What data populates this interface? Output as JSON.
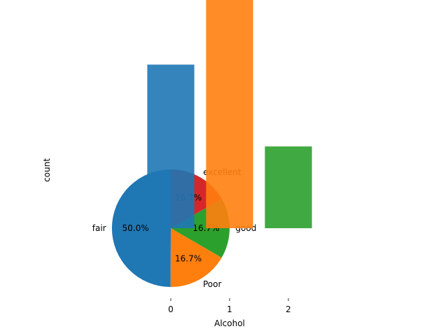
{
  "chart_data": [
    {
      "type": "pie",
      "slices": [
        {
          "label": "fair",
          "value": 50.0,
          "pct_label": "50.0%",
          "color": "#1f77b4"
        },
        {
          "label": "Poor",
          "value": 16.7,
          "pct_label": "16.7%",
          "color": "#ff7f0e"
        },
        {
          "label": "good",
          "value": 16.7,
          "pct_label": "16.7%",
          "color": "#2ca02c"
        },
        {
          "label": "excellent",
          "value": 16.7,
          "pct_label": "16.7%",
          "color": "#d62728"
        }
      ]
    },
    {
      "type": "bar",
      "categories": [
        "0",
        "1",
        "2"
      ],
      "values": [
        4,
        6,
        2
      ],
      "colors": [
        "#1f77b4",
        "#ff7f0e",
        "#2ca02c"
      ],
      "xlabel": "Alcohol",
      "ylabel": "count",
      "ylim": [
        0,
        6.3
      ]
    }
  ]
}
